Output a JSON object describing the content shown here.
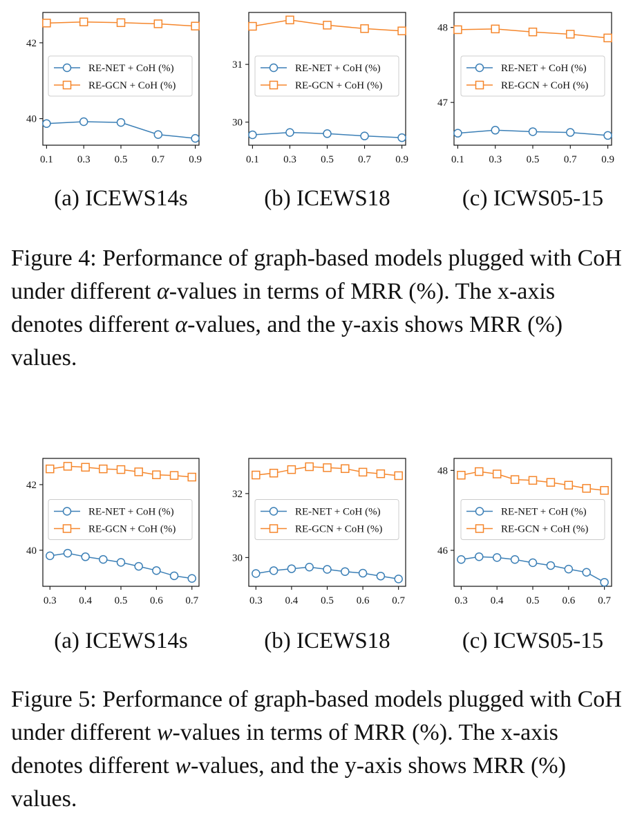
{
  "colors": {
    "renet": "#3b7fb6",
    "regcn": "#f5862b",
    "axis": "#111111"
  },
  "figure4": {
    "caption": {
      "label": "Figure 4:",
      "t1": " Performance of graph-based models plugged with CoH under different ",
      "math1": "α",
      "t2": "-values in terms of MRR (%). The x-axis denotes different ",
      "math2": "α",
      "t3": "-values, and the y-axis shows MRR (%) values."
    }
  },
  "figure5": {
    "caption": {
      "label": "Figure 5:",
      "t1": " Performance of graph-based models plugged with CoH under different ",
      "math1": "w",
      "t2": "-values in terms of MRR (%). The x-axis denotes different ",
      "math2": "w",
      "t3": "-values, and the y-axis shows MRR (%) values."
    }
  },
  "chart_data": [
    {
      "type": "line",
      "figure": "figure4",
      "subcaption": "(a) ICEWS14s",
      "x": [
        0.1,
        0.3,
        0.5,
        0.7,
        0.9
      ],
      "xticks": [
        "0.1",
        "0.3",
        "0.5",
        "0.7",
        "0.9"
      ],
      "yticks": [
        40,
        42
      ],
      "ylim": [
        39.3,
        42.8
      ],
      "legend": "center-right",
      "series": [
        {
          "name": "RE-NET + CoH (%)",
          "marker": "circle",
          "values": [
            39.87,
            39.92,
            39.9,
            39.58,
            39.48
          ]
        },
        {
          "name": "RE-GCN + CoH (%)",
          "marker": "square",
          "values": [
            42.52,
            42.55,
            42.53,
            42.5,
            42.44
          ]
        }
      ]
    },
    {
      "type": "line",
      "figure": "figure4",
      "subcaption": "(b) ICEWS18",
      "x": [
        0.1,
        0.3,
        0.5,
        0.7,
        0.9
      ],
      "xticks": [
        "0.1",
        "0.3",
        "0.5",
        "0.7",
        "0.9"
      ],
      "yticks": [
        30,
        31
      ],
      "ylim": [
        29.6,
        31.9
      ],
      "legend": "center-right",
      "series": [
        {
          "name": "RE-NET + CoH (%)",
          "marker": "circle",
          "values": [
            29.78,
            29.82,
            29.8,
            29.76,
            29.73
          ]
        },
        {
          "name": "RE-GCN + CoH (%)",
          "marker": "square",
          "values": [
            31.66,
            31.77,
            31.68,
            31.62,
            31.58
          ]
        }
      ]
    },
    {
      "type": "line",
      "figure": "figure4",
      "subcaption": "(c) ICWS05-15",
      "x": [
        0.1,
        0.3,
        0.5,
        0.7,
        0.9
      ],
      "xticks": [
        "0.1",
        "0.3",
        "0.5",
        "0.7",
        "0.9"
      ],
      "yticks": [
        47,
        48
      ],
      "ylim": [
        46.43,
        48.2
      ],
      "legend": "center-right",
      "series": [
        {
          "name": "RE-NET + CoH (%)",
          "marker": "circle",
          "values": [
            46.59,
            46.63,
            46.61,
            46.6,
            46.56
          ]
        },
        {
          "name": "RE-GCN + CoH (%)",
          "marker": "square",
          "values": [
            47.97,
            47.98,
            47.94,
            47.91,
            47.86
          ]
        }
      ]
    },
    {
      "type": "line",
      "figure": "figure5",
      "subcaption": "(a) ICEWS14s",
      "x": [
        0.3,
        0.35,
        0.4,
        0.45,
        0.5,
        0.55,
        0.6,
        0.65,
        0.7
      ],
      "xticks": [
        "0.3",
        "0.4",
        "0.5",
        "0.6",
        "0.7"
      ],
      "yticks": [
        40,
        42
      ],
      "ylim": [
        38.9,
        42.8
      ],
      "legend": "center-right",
      "series": [
        {
          "name": "RE-NET + CoH (%)",
          "marker": "circle",
          "values": [
            39.83,
            39.91,
            39.8,
            39.72,
            39.63,
            39.51,
            39.38,
            39.22,
            39.14
          ]
        },
        {
          "name": "RE-GCN + CoH (%)",
          "marker": "square",
          "values": [
            42.48,
            42.56,
            42.53,
            42.48,
            42.46,
            42.39,
            42.3,
            42.28,
            42.23
          ]
        }
      ]
    },
    {
      "type": "line",
      "figure": "figure5",
      "subcaption": "(b) ICEWS18",
      "x": [
        0.3,
        0.35,
        0.4,
        0.45,
        0.5,
        0.55,
        0.6,
        0.65,
        0.7
      ],
      "xticks": [
        "0.3",
        "0.4",
        "0.5",
        "0.6",
        "0.7"
      ],
      "yticks": [
        30,
        32
      ],
      "ylim": [
        29.1,
        33.1
      ],
      "legend": "center-right",
      "series": [
        {
          "name": "RE-NET + CoH (%)",
          "marker": "circle",
          "values": [
            29.5,
            29.59,
            29.65,
            29.7,
            29.63,
            29.56,
            29.51,
            29.42,
            29.33
          ]
        },
        {
          "name": "RE-GCN + CoH (%)",
          "marker": "square",
          "values": [
            32.58,
            32.64,
            32.75,
            32.84,
            32.81,
            32.78,
            32.67,
            32.62,
            32.56
          ]
        }
      ]
    },
    {
      "type": "line",
      "figure": "figure5",
      "subcaption": "(c) ICWS05-15",
      "x": [
        0.3,
        0.35,
        0.4,
        0.45,
        0.5,
        0.55,
        0.6,
        0.65,
        0.7
      ],
      "xticks": [
        "0.3",
        "0.4",
        "0.5",
        "0.6",
        "0.7"
      ],
      "yticks": [
        46,
        48
      ],
      "ylim": [
        45.1,
        48.3
      ],
      "legend": "center-right",
      "series": [
        {
          "name": "RE-NET + CoH (%)",
          "marker": "circle",
          "values": [
            45.77,
            45.84,
            45.82,
            45.77,
            45.69,
            45.62,
            45.53,
            45.45,
            45.2
          ]
        },
        {
          "name": "RE-GCN + CoH (%)",
          "marker": "square",
          "values": [
            47.88,
            47.97,
            47.91,
            47.77,
            47.75,
            47.7,
            47.63,
            47.55,
            47.5
          ]
        }
      ]
    }
  ]
}
